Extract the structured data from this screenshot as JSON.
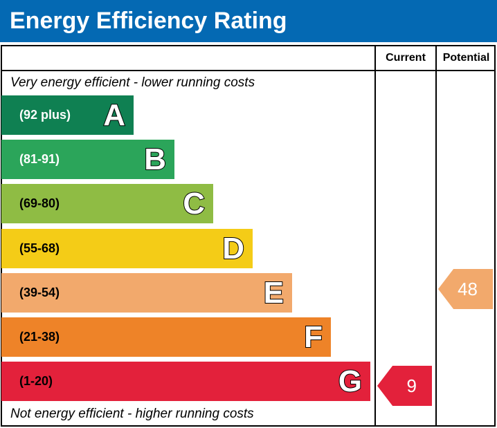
{
  "title": "Energy Efficiency Rating",
  "columns": {
    "current": "Current",
    "potential": "Potential"
  },
  "notes": {
    "top": "Very energy efficient - lower running costs",
    "bottom": "Not energy efficient - higher running costs"
  },
  "chart_data": {
    "type": "bar",
    "title": "Energy Efficiency Rating",
    "bands": [
      {
        "letter": "A",
        "range": "(92 plus)",
        "color": "#0f8052"
      },
      {
        "letter": "B",
        "range": "(81-91)",
        "color": "#2ba55a"
      },
      {
        "letter": "C",
        "range": "(69-80)",
        "color": "#8fbc44"
      },
      {
        "letter": "D",
        "range": "(55-68)",
        "color": "#f4cc17"
      },
      {
        "letter": "E",
        "range": "(39-54)",
        "color": "#f2a96c"
      },
      {
        "letter": "F",
        "range": "(21-38)",
        "color": "#ee8328"
      },
      {
        "letter": "G",
        "range": "(1-20)",
        "color": "#e3213b"
      }
    ],
    "current": {
      "value": "9",
      "band": "G",
      "color": "#e3213b"
    },
    "potential": {
      "value": "48",
      "band": "E",
      "color": "#f2a96c"
    }
  }
}
